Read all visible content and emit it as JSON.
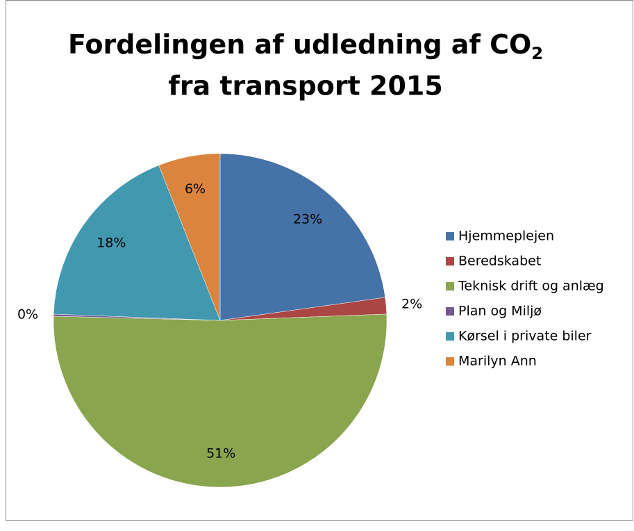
{
  "chart_data": {
    "type": "pie",
    "title": {
      "line1": "Fordelingen af udledning af  CO",
      "subscript": "2",
      "line2": "fra transport 2015"
    },
    "categories": [
      "Hjemmeplejen",
      "Beredskabet",
      "Teknisk drift og anlæg",
      "Plan og Miljø",
      "Kørsel i private biler",
      "Marilyn Ann"
    ],
    "values": [
      22.8,
      1.6,
      51,
      0.2,
      18.4,
      6.0
    ],
    "value_labels": [
      "23%",
      "2%",
      "51%",
      "0%",
      "18%",
      "6%"
    ],
    "colors": [
      "#4572a7",
      "#aa4643",
      "#89a54e",
      "#71588f",
      "#4198af",
      "#db843d"
    ],
    "legend": "right"
  }
}
